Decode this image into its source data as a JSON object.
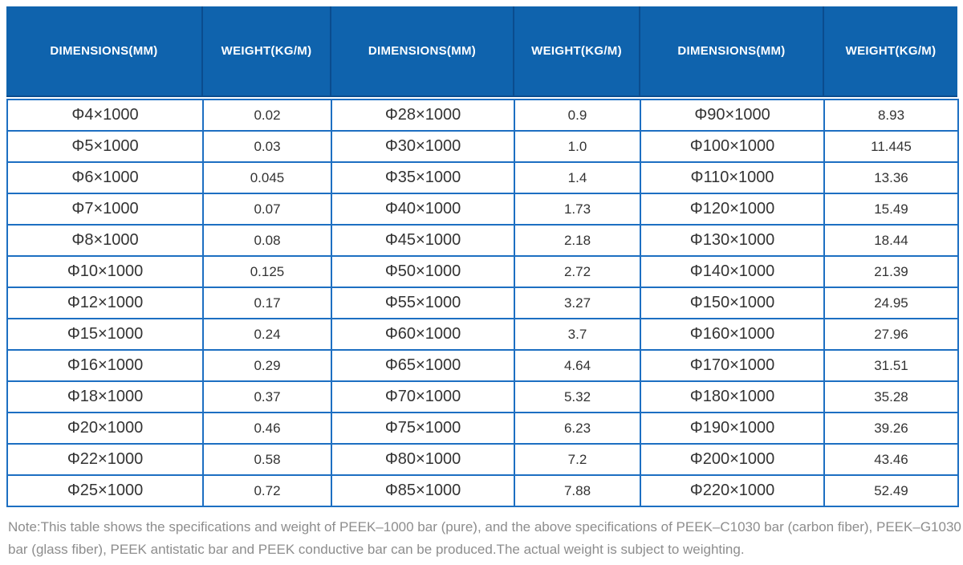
{
  "colors": {
    "header_bg": "#0f63ad",
    "header_divider": "#0a4c8e",
    "body_border": "#1d6fc2",
    "body_text": "#333333",
    "note_text": "#8d8d8d"
  },
  "chart_data": {
    "type": "table",
    "columns": [
      "DIMENSIONS(MM)",
      "WEIGHT(KG/M)",
      "DIMENSIONS(MM)",
      "WEIGHT(KG/M)",
      "DIMENSIONS(MM)",
      "WEIGHT(KG/M)"
    ],
    "rows": [
      [
        "Φ4×1000",
        "0.02",
        "Φ28×1000",
        "0.9",
        "Φ90×1000",
        "8.93"
      ],
      [
        "Φ5×1000",
        "0.03",
        "Φ30×1000",
        "1.0",
        "Φ100×1000",
        "11.445"
      ],
      [
        "Φ6×1000",
        "0.045",
        "Φ35×1000",
        "1.4",
        "Φ110×1000",
        "13.36"
      ],
      [
        "Φ7×1000",
        "0.07",
        "Φ40×1000",
        "1.73",
        "Φ120×1000",
        "15.49"
      ],
      [
        "Φ8×1000",
        "0.08",
        "Φ45×1000",
        "2.18",
        "Φ130×1000",
        "18.44"
      ],
      [
        "Φ10×1000",
        "0.125",
        "Φ50×1000",
        "2.72",
        "Φ140×1000",
        "21.39"
      ],
      [
        "Φ12×1000",
        "0.17",
        "Φ55×1000",
        "3.27",
        "Φ150×1000",
        "24.95"
      ],
      [
        "Φ15×1000",
        "0.24",
        "Φ60×1000",
        "3.7",
        "Φ160×1000",
        "27.96"
      ],
      [
        "Φ16×1000",
        "0.29",
        "Φ65×1000",
        "4.64",
        "Φ170×1000",
        "31.51"
      ],
      [
        "Φ18×1000",
        "0.37",
        "Φ70×1000",
        "5.32",
        "Φ180×1000",
        "35.28"
      ],
      [
        "Φ20×1000",
        "0.46",
        "Φ75×1000",
        "6.23",
        "Φ190×1000",
        "39.26"
      ],
      [
        "Φ22×1000",
        "0.58",
        "Φ80×1000",
        "7.2",
        "Φ200×1000",
        "43.46"
      ],
      [
        "Φ25×1000",
        "0.72",
        "Φ85×1000",
        "7.88",
        "Φ220×1000",
        "52.49"
      ]
    ],
    "note": "Note:This table shows the specifications and weight of PEEK–1000 bar (pure), and the above specifications of PEEK–C1030 bar (carbon fiber), PEEK–G1030 bar (glass fiber), PEEK antistatic bar and PEEK conductive bar can be produced.The actual weight is subject to weighting.",
    "layout": {
      "column_groups": 3,
      "grid": "on",
      "header_rows": 1,
      "body_rows": 13
    }
  }
}
